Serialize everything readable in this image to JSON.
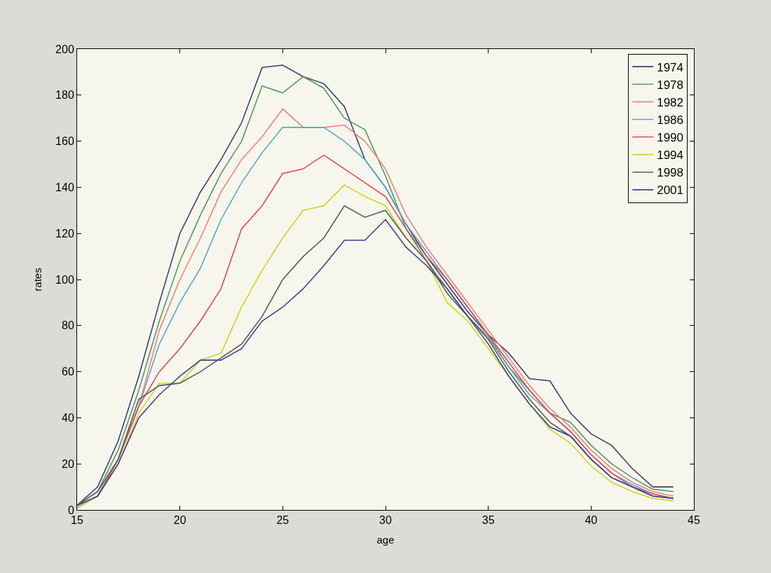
{
  "chart_data": {
    "type": "line",
    "xlabel": "age",
    "ylabel": "rates",
    "xlim": [
      15,
      45
    ],
    "xticks": [
      15,
      20,
      25,
      30,
      35,
      40,
      45
    ],
    "ylim": [
      0,
      200
    ],
    "yticks": [
      0,
      20,
      40,
      60,
      80,
      100,
      120,
      140,
      160,
      180,
      200
    ],
    "grid": false,
    "legend": "top right",
    "marker": "none",
    "line_style": "solid",
    "x": [
      15,
      16,
      17,
      18,
      19,
      20,
      21,
      22,
      23,
      24,
      25,
      26,
      27,
      28,
      29,
      30,
      31,
      32,
      33,
      34,
      35,
      36,
      37,
      38,
      39,
      40,
      41,
      42,
      43,
      44
    ],
    "series": [
      {
        "name": "1974",
        "color": "#3a3f7a",
        "values": [
          2,
          10,
          30,
          58,
          90,
          120,
          138,
          152,
          168,
          192,
          193,
          188,
          185,
          175,
          152,
          140,
          124,
          110,
          98,
          86,
          76,
          68,
          57,
          56,
          42,
          33,
          28,
          18,
          10,
          10
        ]
      },
      {
        "name": "1978",
        "color": "#4f9a6a",
        "values": [
          2,
          8,
          26,
          52,
          82,
          108,
          128,
          146,
          160,
          184,
          181,
          188,
          183,
          170,
          165,
          145,
          122,
          108,
          96,
          84,
          75,
          62,
          52,
          42,
          38,
          28,
          20,
          14,
          9,
          8
        ]
      },
      {
        "name": "1982",
        "color": "#f08080",
        "values": [
          1,
          6,
          22,
          45,
          78,
          100,
          118,
          138,
          152,
          162,
          174,
          166,
          166,
          167,
          160,
          148,
          128,
          114,
          102,
          90,
          78,
          66,
          54,
          44,
          36,
          26,
          18,
          12,
          8,
          6
        ]
      },
      {
        "name": "1986",
        "color": "#5aa8c8",
        "values": [
          1,
          6,
          22,
          45,
          72,
          90,
          105,
          126,
          142,
          155,
          166,
          166,
          166,
          160,
          152,
          140,
          124,
          112,
          100,
          88,
          76,
          62,
          50,
          42,
          34,
          24,
          16,
          11,
          7,
          5
        ]
      },
      {
        "name": "1990",
        "color": "#e04858",
        "values": [
          1,
          6,
          22,
          45,
          60,
          70,
          82,
          96,
          122,
          132,
          146,
          148,
          154,
          148,
          142,
          136,
          122,
          110,
          100,
          88,
          76,
          64,
          52,
          42,
          34,
          24,
          16,
          10,
          7,
          5
        ]
      },
      {
        "name": "1994",
        "color": "#c8d820",
        "values": [
          1,
          6,
          20,
          42,
          55,
          55,
          65,
          68,
          88,
          104,
          118,
          130,
          132,
          141,
          136,
          132,
          118,
          108,
          90,
          82,
          70,
          58,
          46,
          35,
          29,
          19,
          12,
          8,
          5,
          4
        ]
      },
      {
        "name": "1998",
        "color": "#5a5a5a",
        "values": [
          2,
          8,
          22,
          48,
          54,
          55,
          60,
          66,
          72,
          84,
          100,
          110,
          118,
          132,
          127,
          130,
          118,
          108,
          94,
          84,
          74,
          60,
          48,
          38,
          32,
          22,
          14,
          10,
          6,
          5
        ]
      },
      {
        "name": "2001",
        "color": "#404090",
        "values": [
          2,
          6,
          20,
          40,
          50,
          58,
          65,
          65,
          70,
          82,
          88,
          96,
          106,
          117,
          117,
          126,
          114,
          106,
          96,
          84,
          72,
          58,
          46,
          36,
          32,
          22,
          14,
          10,
          6,
          5
        ]
      }
    ]
  }
}
